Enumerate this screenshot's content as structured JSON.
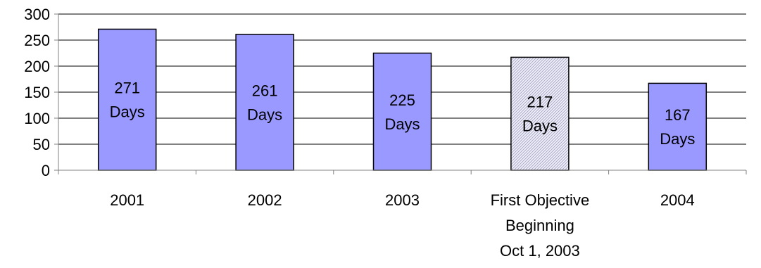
{
  "chart_data": {
    "type": "bar",
    "categories": [
      [
        "2001"
      ],
      [
        "2002"
      ],
      [
        "2003"
      ],
      [
        "First Objective",
        "Beginning",
        "Oct 1, 2003"
      ],
      [
        "2004"
      ]
    ],
    "values": [
      271,
      261,
      225,
      217,
      167
    ],
    "data_labels": [
      [
        "271",
        "Days"
      ],
      [
        "261",
        "Days"
      ],
      [
        "225",
        "Days"
      ],
      [
        "217",
        "Days"
      ],
      [
        "167",
        "Days"
      ]
    ],
    "bar_styles": [
      "solid",
      "solid",
      "solid",
      "hatched",
      "solid"
    ],
    "ylim": [
      0,
      300
    ],
    "yticks": [
      0,
      50,
      100,
      150,
      200,
      250,
      300
    ],
    "grid": true,
    "legend": "none",
    "colors": {
      "bar_fill": "#9999ff",
      "bar_stroke": "#000000",
      "hatch_bg": "#f2f2fa",
      "hatch_line": "#a9a9c9",
      "grid": "#000000",
      "axis": "#808080"
    }
  }
}
